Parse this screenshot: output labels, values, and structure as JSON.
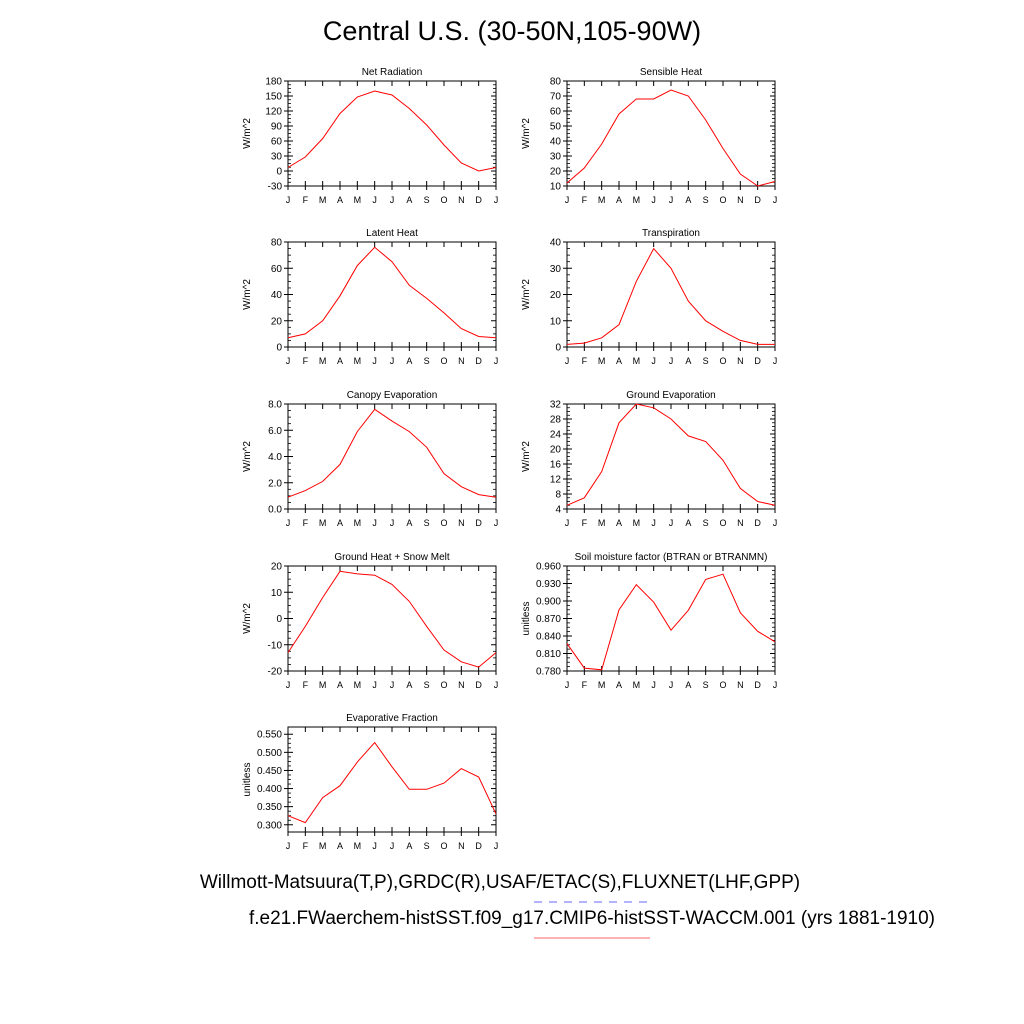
{
  "title": "Central U.S. (30-50N,105-90W)",
  "captions": {
    "obs": "Willmott-Matsuura(T,P),GRDC(R),USAF/ETAC(S),FLUXNET(LHF,GPP)",
    "model": "f.e21.FWaerchem-histSST.f09_g17.CMIP6-histSST-WACCM.001 (yrs 1881-1910)"
  },
  "colors": {
    "series": "#ff0000",
    "obs_dash": "#6666ff",
    "model_line": "#ff6666"
  },
  "months": [
    "J",
    "F",
    "M",
    "A",
    "M",
    "J",
    "J",
    "A",
    "S",
    "O",
    "N",
    "D",
    "J"
  ],
  "chart_data": [
    {
      "type": "line",
      "title": "Net Radiation",
      "ylabel": "W/m^2",
      "ylim": [
        -30,
        180
      ],
      "yticks": [
        "-30",
        "0",
        "30",
        "60",
        "90",
        "120",
        "150",
        "180"
      ],
      "ytickvals": [
        -30,
        0,
        30,
        60,
        90,
        120,
        150,
        180
      ],
      "values": [
        7,
        28,
        65,
        115,
        148,
        160,
        152,
        125,
        92,
        52,
        16,
        0,
        7
      ]
    },
    {
      "type": "line",
      "title": "Sensible Heat",
      "ylabel": "W/m^2",
      "ylim": [
        10,
        80
      ],
      "yticks": [
        "10",
        "20",
        "30",
        "40",
        "50",
        "60",
        "70",
        "80"
      ],
      "ytickvals": [
        10,
        20,
        30,
        40,
        50,
        60,
        70,
        80
      ],
      "values": [
        12,
        22,
        38,
        58,
        68,
        68,
        74,
        70,
        54,
        35,
        18,
        10,
        13
      ]
    },
    {
      "type": "line",
      "title": "Latent Heat",
      "ylabel": "W/m^2",
      "ylim": [
        0,
        80
      ],
      "yticks": [
        "0",
        "20",
        "40",
        "60",
        "80"
      ],
      "ytickvals": [
        0,
        20,
        40,
        60,
        80
      ],
      "values": [
        7,
        10,
        20,
        39,
        62,
        76,
        65,
        47,
        37,
        26,
        14,
        8,
        7
      ]
    },
    {
      "type": "line",
      "title": "Transpiration",
      "ylabel": "W/m^2",
      "ylim": [
        0,
        40
      ],
      "yticks": [
        "0",
        "10",
        "20",
        "30",
        "40"
      ],
      "ytickvals": [
        0,
        10,
        20,
        30,
        40
      ],
      "values": [
        1,
        1.5,
        3.5,
        8.5,
        25,
        37.5,
        30,
        17.5,
        10,
        6,
        2.5,
        1,
        1
      ]
    },
    {
      "type": "line",
      "title": "Canopy Evaporation",
      "ylabel": "W/m^2",
      "ylim": [
        0,
        8
      ],
      "yticks": [
        "0.0",
        "2.0",
        "4.0",
        "6.0",
        "8.0"
      ],
      "ytickvals": [
        0,
        2,
        4,
        6,
        8
      ],
      "values": [
        0.9,
        1.4,
        2.1,
        3.4,
        5.9,
        7.6,
        6.7,
        5.9,
        4.7,
        2.7,
        1.7,
        1.1,
        0.9
      ]
    },
    {
      "type": "line",
      "title": "Ground Evaporation",
      "ylabel": "W/m^2",
      "ylim": [
        4,
        32
      ],
      "yticks": [
        "4",
        "8",
        "12",
        "16",
        "20",
        "24",
        "28",
        "32"
      ],
      "ytickvals": [
        4,
        8,
        12,
        16,
        20,
        24,
        28,
        32
      ],
      "values": [
        5,
        7,
        14,
        27,
        32,
        31,
        28,
        23.5,
        22,
        17,
        9.5,
        6,
        5
      ]
    },
    {
      "type": "line",
      "title": "Ground Heat + Snow Melt",
      "ylabel": "W/m^2",
      "ylim": [
        -20,
        20
      ],
      "yticks": [
        "-20",
        "-10",
        "0",
        "10",
        "20"
      ],
      "ytickvals": [
        -20,
        -10,
        0,
        10,
        20
      ],
      "values": [
        -13,
        -3,
        8,
        18,
        17,
        16.5,
        13,
        6.5,
        -3,
        -12,
        -16.5,
        -18.5,
        -13
      ]
    },
    {
      "type": "line",
      "title": "Soil moisture factor (BTRAN or BTRANMN)",
      "ylabel": "unitless",
      "ylim": [
        0.78,
        0.96
      ],
      "yticks": [
        "0.780",
        "0.810",
        "0.840",
        "0.870",
        "0.900",
        "0.930",
        "0.960"
      ],
      "ytickvals": [
        0.78,
        0.81,
        0.84,
        0.87,
        0.9,
        0.93,
        0.96
      ],
      "values": [
        0.827,
        0.785,
        0.782,
        0.885,
        0.928,
        0.898,
        0.85,
        0.884,
        0.937,
        0.946,
        0.88,
        0.848,
        0.83
      ]
    },
    {
      "type": "line",
      "title": "Evaporative Fraction",
      "ylabel": "unitless",
      "ylim": [
        0.28,
        0.57
      ],
      "yticks": [
        "0.300",
        "0.350",
        "0.400",
        "0.450",
        "0.500",
        "0.550"
      ],
      "ytickvals": [
        0.3,
        0.35,
        0.4,
        0.45,
        0.5,
        0.55
      ],
      "values": [
        0.325,
        0.306,
        0.375,
        0.408,
        0.473,
        0.527,
        0.46,
        0.398,
        0.398,
        0.415,
        0.455,
        0.432,
        0.33
      ]
    }
  ]
}
